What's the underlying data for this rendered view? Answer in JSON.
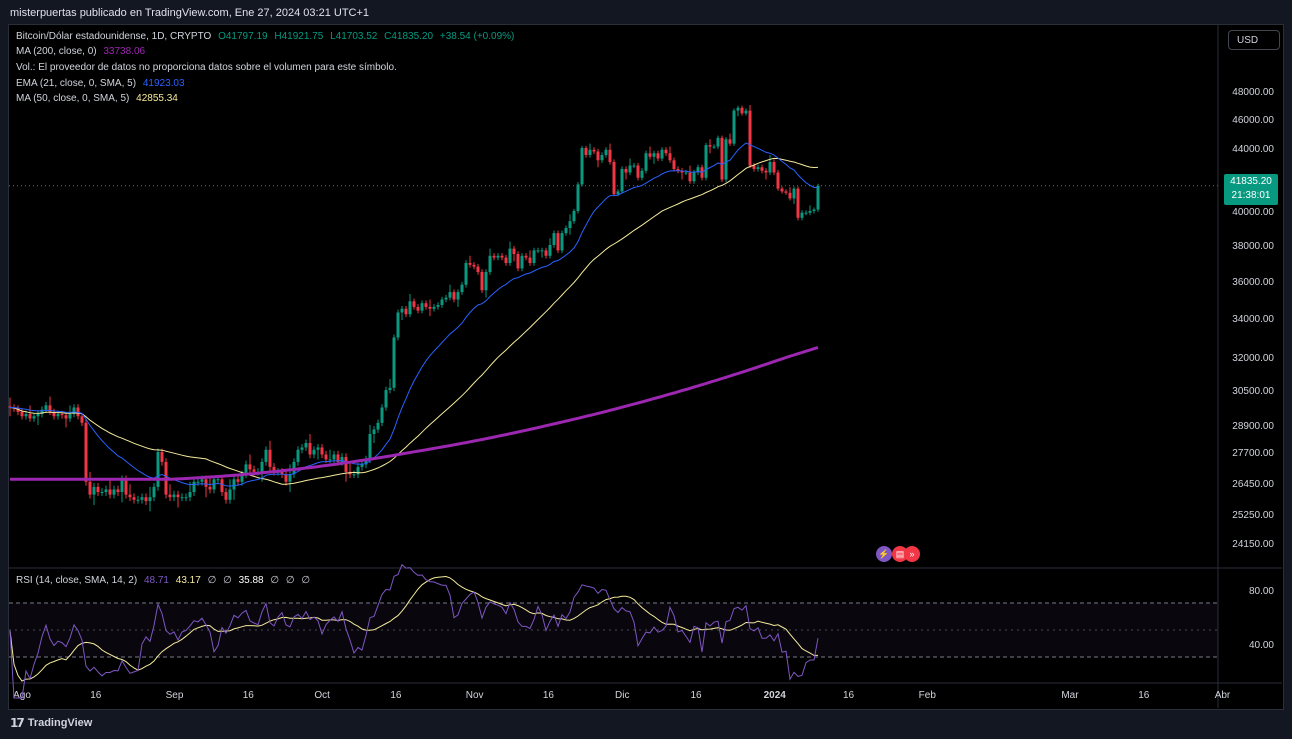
{
  "header": {
    "publisher": "misterpuertas publicado en TradingView.com, Ene 27, 2024 03:21 UTC+1"
  },
  "legend": {
    "symbol": "Bitcoin/Dólar estadounidense, 1D, CRYPTO",
    "ohlc": {
      "o": "O41797.19",
      "h": "H41921.75",
      "l": "L41703.52",
      "c": "C41835.20",
      "chg": "+38.54 (+0.09%)"
    },
    "ma200": {
      "label": "MA (200, close, 0)",
      "value": "33738.06",
      "color": "#9c27b0"
    },
    "vol": "Vol.: El proveedor de datos no proporciona datos sobre el volumen para este símbolo.",
    "ema21": {
      "label": "EMA (21, close, 0, SMA, 5)",
      "value": "41923.03",
      "color": "#2962ff"
    },
    "ma50": {
      "label": "MA (50, close, 0, SMA, 5)",
      "value": "42855.34",
      "color": "#fff59d"
    }
  },
  "currency_button": "USD",
  "last_price": {
    "price": "41835.20",
    "countdown": "21:38:01"
  },
  "rsi": {
    "label": "RSI (14, close, SMA, 14, 2)",
    "rsi_value": "48.71",
    "sma_value": "43.17",
    "extra1": "∅",
    "extra2": "∅",
    "band_value": "35.88",
    "extra3": "∅",
    "extra4": "∅",
    "extra5": "∅"
  },
  "footer": {
    "brand": "TradingView"
  },
  "colors": {
    "up": "#089981",
    "down": "#f23645",
    "ema": "#2962ff",
    "ma50": "#f5eb9c",
    "ma200": "#9c27b0",
    "rsi": "#7e57c2"
  },
  "chart_data": {
    "type": "candlestick",
    "title": "Bitcoin/Dólar estadounidense, 1D, CRYPTO",
    "price_axis_ticks": [
      "48000.00",
      "46000.00",
      "44000.00",
      "42000.00",
      "40000.00",
      "38000.00",
      "36000.00",
      "34000.00",
      "32000.00",
      "30500.00",
      "28900.00",
      "27700.00",
      "26450.00",
      "25250.00",
      "24150.00"
    ],
    "price_axis_values": [
      48000,
      46000,
      44000,
      42000,
      40000,
      38000,
      36000,
      34000,
      32000,
      30500,
      28900,
      27700,
      26450,
      25250,
      24150
    ],
    "rsi_axis_ticks": [
      "80.00",
      "40.00"
    ],
    "time_axis_labels": [
      "Ago",
      "16",
      "Sep",
      "16",
      "Oct",
      "16",
      "Nov",
      "16",
      "Dic",
      "16",
      "2024",
      "16",
      "Feb",
      "Mar",
      "16",
      "Abr"
    ],
    "time_axis_dates": [
      "2023-08-01",
      "2023-08-16",
      "2023-09-01",
      "2023-09-16",
      "2023-10-01",
      "2023-10-16",
      "2023-11-01",
      "2023-11-16",
      "2023-12-01",
      "2023-12-16",
      "2024-01-01",
      "2024-01-16",
      "2024-02-01",
      "2024-03-01",
      "2024-03-16",
      "2024-04-01"
    ],
    "closes": [
      29700,
      29650,
      29500,
      29300,
      29400,
      29200,
      29300,
      29400,
      29600,
      29800,
      29500,
      29300,
      29400,
      29350,
      29200,
      29400,
      29700,
      29300,
      29000,
      26500,
      26000,
      26300,
      26100,
      26100,
      26200,
      26000,
      26200,
      26100,
      26600,
      26000,
      25900,
      25800,
      25800,
      25900,
      25750,
      25900,
      26300,
      27700,
      27300,
      26000,
      25900,
      26000,
      25900,
      25900,
      25900,
      26100,
      26500,
      26500,
      26600,
      26300,
      26200,
      26600,
      26600,
      26100,
      25800,
      26200,
      26600,
      26500,
      26800,
      27200,
      27000,
      26900,
      26900,
      27300,
      27800,
      27100,
      26900,
      26900,
      26800,
      26500,
      26800,
      27300,
      27800,
      27900,
      28100,
      27600,
      27800,
      27900,
      27600,
      27400,
      27400,
      27600,
      27300,
      27500,
      26900,
      26800,
      26800,
      27100,
      27200,
      27400,
      28500,
      28700,
      29000,
      29700,
      30500,
      30600,
      33000,
      34300,
      34500,
      34200,
      34900,
      34600,
      34400,
      34800,
      34600,
      34500,
      34600,
      34700,
      35000,
      35100,
      35400,
      35000,
      35400,
      35800,
      37000,
      36900,
      36800,
      36500,
      35500,
      36500,
      37400,
      37300,
      37400,
      37300,
      37000,
      37800,
      37500,
      36700,
      37400,
      37300,
      37000,
      37700,
      37700,
      37700,
      37400,
      38000,
      38700,
      37700,
      38700,
      39000,
      39400,
      40000,
      41900,
      44000,
      43600,
      43900,
      43800,
      43300,
      43600,
      43900,
      43200,
      41200,
      41400,
      42800,
      42600,
      43000,
      43000,
      42300,
      42700,
      43700,
      43500,
      43700,
      43400,
      43900,
      43700,
      43300,
      42800,
      42700,
      42600,
      42600,
      42100,
      42600,
      42900,
      42300,
      44200,
      44100,
      44100,
      44700,
      42200,
      44600,
      44300,
      46600,
      46800,
      46400,
      46600,
      43000,
      42800,
      42900,
      42700,
      42600,
      43200,
      42600,
      41600,
      41400,
      41300,
      40900,
      41600,
      39600,
      39900,
      39900,
      40000,
      40100,
      41800
    ]
  }
}
